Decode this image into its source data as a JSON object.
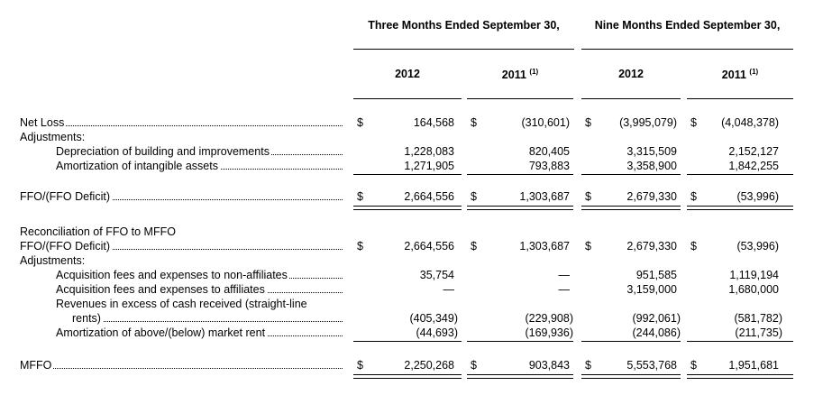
{
  "headers": {
    "three_months": "Three Months Ended September 30,",
    "nine_months": "Nine Months Ended September 30,",
    "col_2012": "2012",
    "col_2011": "2011",
    "footnote_mark": "(1)"
  },
  "currency_symbol": "$",
  "rows": {
    "net_loss": {
      "label": "Net Loss",
      "values": [
        "164,568",
        "(310,601)",
        "(3,995,079)",
        "(4,048,378)"
      ]
    },
    "adjustments_1": {
      "label": "Adjustments:"
    },
    "depreciation": {
      "label": "Depreciation of building and improvements",
      "values": [
        "1,228,083",
        "820,405",
        "3,315,509",
        "2,152,127"
      ]
    },
    "amortization_intangible": {
      "label": "Amortization of intangible assets",
      "values": [
        "1,271,905",
        "793,883",
        "3,358,900",
        "1,842,255"
      ]
    },
    "ffo": {
      "label": "FFO/(FFO Deficit)",
      "values": [
        "2,664,556",
        "1,303,687",
        "2,679,330",
        "(53,996)"
      ]
    },
    "reconciliation_title": {
      "label": "Reconciliation of FFO to MFFO"
    },
    "ffo_2": {
      "label": "FFO/(FFO Deficit)",
      "values": [
        "2,664,556",
        "1,303,687",
        "2,679,330",
        "(53,996)"
      ]
    },
    "adjustments_2": {
      "label": "Adjustments:"
    },
    "acq_non_affiliates": {
      "label": "Acquisition fees and expenses to non-affiliates",
      "values": [
        "35,754",
        "—",
        "951,585",
        "1,119,194"
      ]
    },
    "acq_affiliates": {
      "label": "Acquisition fees and expenses to affiliates",
      "values": [
        "—",
        "—",
        "3,159,000",
        "1,680,000"
      ]
    },
    "revenues_excess_line1": {
      "label": "Revenues in excess of cash received (straight-line"
    },
    "revenues_excess_line2": {
      "label": "rents)",
      "values": [
        "(405,349)",
        "(229,908)",
        "(992,061)",
        "(581,782)"
      ]
    },
    "amortization_market_rent": {
      "label": "Amortization of above/(below) market rent",
      "values": [
        "(44,693)",
        "(169,936)",
        "(244,086)",
        "(211,735)"
      ]
    },
    "mffo": {
      "label": "MFFO",
      "values": [
        "2,250,268",
        "903,843",
        "5,553,768",
        "1,951,681"
      ]
    }
  }
}
